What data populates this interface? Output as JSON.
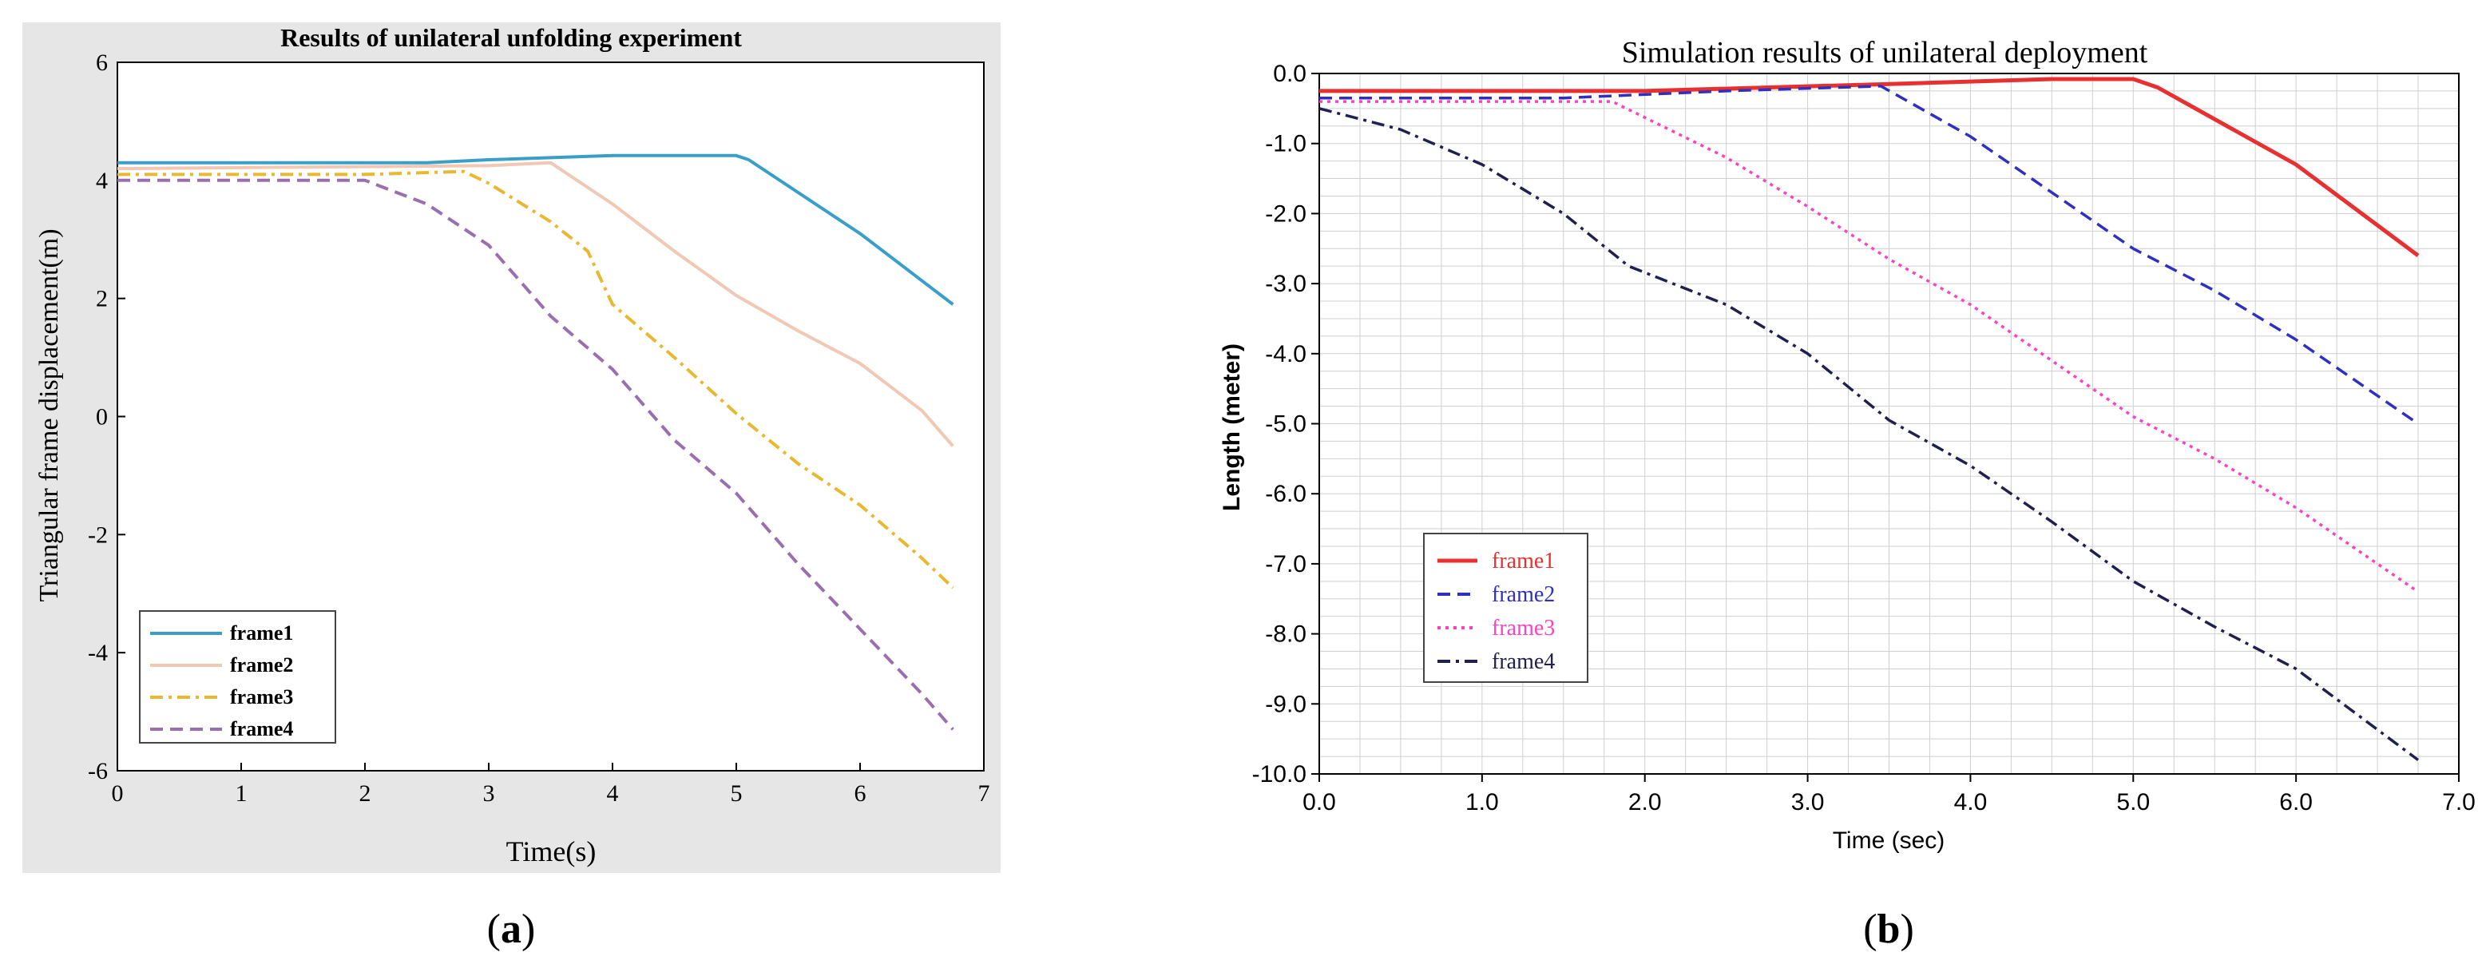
{
  "figure": {
    "panel_a_caption": "a",
    "panel_b_caption": "b"
  },
  "chart_data": [
    {
      "type": "line",
      "title": "Results of unilateral unfolding experiment",
      "xlabel": "Time(s)",
      "ylabel": "Triangular frame displacement(m)",
      "xlim": [
        0,
        7
      ],
      "ylim": [
        -6,
        6
      ],
      "xticks": [
        "0",
        "1",
        "2",
        "3",
        "4",
        "5",
        "6",
        "7"
      ],
      "yticks": [
        "6",
        "4",
        "2",
        "0",
        "-2",
        "-4",
        "-6"
      ],
      "legend_position": "bottom-left",
      "background": "#e6e6e6",
      "series": [
        {
          "name": "frame1",
          "color": "#3a9fc8",
          "dash": "solid",
          "points": [
            [
              0,
              4.3
            ],
            [
              2.5,
              4.3
            ],
            [
              3,
              4.35
            ],
            [
              4,
              4.42
            ],
            [
              5,
              4.42
            ],
            [
              5.1,
              4.35
            ],
            [
              6,
              3.1
            ],
            [
              6.75,
              1.9
            ]
          ]
        },
        {
          "name": "frame2",
          "color": "#f0c8b4",
          "dash": "solid",
          "points": [
            [
              0,
              4.2
            ],
            [
              3,
              4.25
            ],
            [
              3.5,
              4.3
            ],
            [
              4,
              3.6
            ],
            [
              4.5,
              2.8
            ],
            [
              5,
              2.05
            ],
            [
              5.5,
              1.45
            ],
            [
              6,
              0.9
            ],
            [
              6.5,
              0.1
            ],
            [
              6.75,
              -0.5
            ]
          ]
        },
        {
          "name": "frame3",
          "color": "#e8b830",
          "dash": "dashdot",
          "points": [
            [
              0,
              4.1
            ],
            [
              2,
              4.1
            ],
            [
              2.8,
              4.15
            ],
            [
              3,
              3.95
            ],
            [
              3.5,
              3.3
            ],
            [
              3.8,
              2.8
            ],
            [
              4,
              1.9
            ],
            [
              4.5,
              1.0
            ],
            [
              5,
              0.05
            ],
            [
              5.5,
              -0.8
            ],
            [
              6,
              -1.5
            ],
            [
              6.5,
              -2.4
            ],
            [
              6.75,
              -2.9
            ]
          ]
        },
        {
          "name": "frame4",
          "color": "#9a6fb0",
          "dash": "dashed",
          "points": [
            [
              0,
              4.0
            ],
            [
              2,
              4.0
            ],
            [
              2.5,
              3.6
            ],
            [
              3,
              2.9
            ],
            [
              3.5,
              1.7
            ],
            [
              4,
              0.8
            ],
            [
              4.5,
              -0.4
            ],
            [
              5,
              -1.3
            ],
            [
              5.5,
              -2.5
            ],
            [
              6,
              -3.6
            ],
            [
              6.5,
              -4.7
            ],
            [
              6.75,
              -5.3
            ]
          ]
        }
      ]
    },
    {
      "type": "line",
      "title": "Simulation results of unilateral deployment",
      "xlabel": "Time (sec)",
      "ylabel": "Length (meter)",
      "xlim": [
        0,
        7
      ],
      "ylim": [
        -10,
        0
      ],
      "xticks": [
        "0.0",
        "1.0",
        "2.0",
        "3.0",
        "4.0",
        "5.0",
        "6.0",
        "7.0"
      ],
      "yticks": [
        "0.0",
        "-1.0",
        "-2.0",
        "-3.0",
        "-4.0",
        "-5.0",
        "-6.0",
        "-7.0",
        "-8.0",
        "-9.0",
        "-10.0"
      ],
      "grid": true,
      "legend_position": "middle-left",
      "background": "#ffffff",
      "series": [
        {
          "name": "frame1",
          "color": "#e83030",
          "dash": "solid",
          "points": [
            [
              0,
              -0.25
            ],
            [
              2,
              -0.25
            ],
            [
              3.5,
              -0.15
            ],
            [
              4.5,
              -0.08
            ],
            [
              5,
              -0.08
            ],
            [
              5.15,
              -0.2
            ],
            [
              6,
              -1.3
            ],
            [
              6.75,
              -2.6
            ]
          ]
        },
        {
          "name": "frame2",
          "color": "#3030c0",
          "dash": "dashed",
          "points": [
            [
              0,
              -0.35
            ],
            [
              1.5,
              -0.35
            ],
            [
              2.5,
              -0.25
            ],
            [
              3.45,
              -0.18
            ],
            [
              4,
              -0.9
            ],
            [
              4.5,
              -1.7
            ],
            [
              5,
              -2.5
            ],
            [
              5.5,
              -3.1
            ],
            [
              6,
              -3.8
            ],
            [
              6.75,
              -5.0
            ]
          ]
        },
        {
          "name": "frame3",
          "color": "#ff40c0",
          "dash": "dotted",
          "points": [
            [
              0,
              -0.4
            ],
            [
              1.8,
              -0.4
            ],
            [
              2.5,
              -1.2
            ],
            [
              3,
              -1.9
            ],
            [
              3.5,
              -2.65
            ],
            [
              4,
              -3.3
            ],
            [
              4.5,
              -4.1
            ],
            [
              5,
              -4.9
            ],
            [
              5.5,
              -5.5
            ],
            [
              6,
              -6.2
            ],
            [
              6.75,
              -7.4
            ]
          ]
        },
        {
          "name": "frame4",
          "color": "#202050",
          "dash": "dashdot",
          "points": [
            [
              0,
              -0.5
            ],
            [
              0.5,
              -0.8
            ],
            [
              1,
              -1.3
            ],
            [
              1.5,
              -2.0
            ],
            [
              1.9,
              -2.75
            ],
            [
              2.5,
              -3.3
            ],
            [
              3,
              -4.0
            ],
            [
              3.5,
              -4.95
            ],
            [
              4,
              -5.6
            ],
            [
              4.5,
              -6.4
            ],
            [
              5,
              -7.25
            ],
            [
              5.5,
              -7.9
            ],
            [
              6,
              -8.5
            ],
            [
              6.75,
              -9.8
            ]
          ]
        }
      ]
    }
  ]
}
